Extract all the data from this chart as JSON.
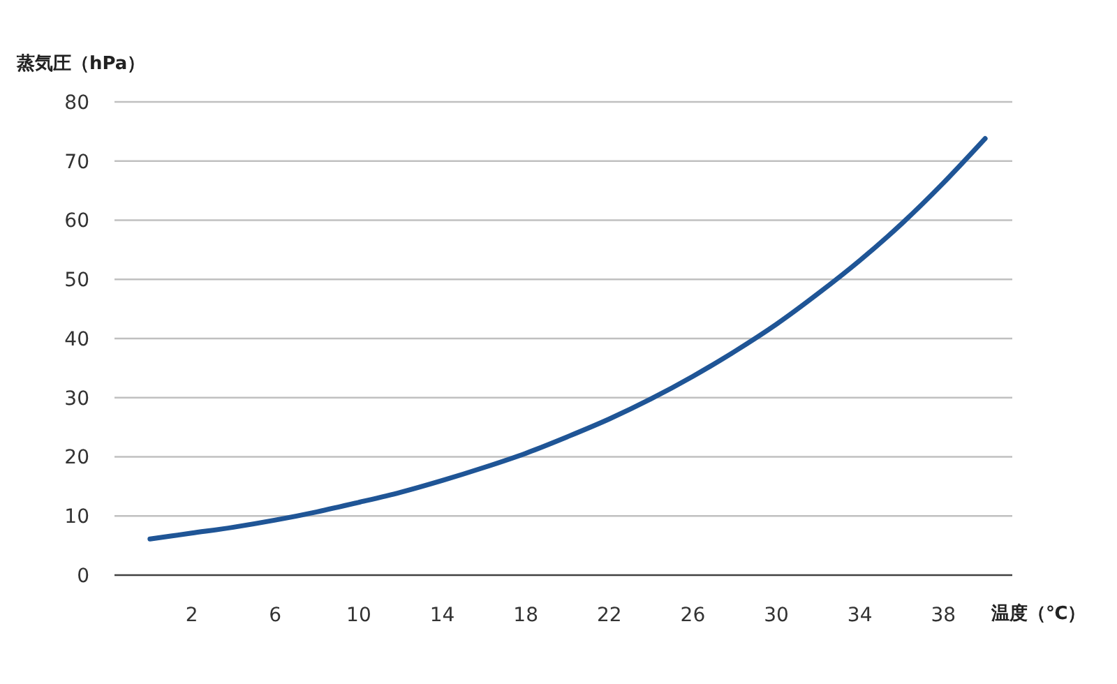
{
  "chart_data": {
    "type": "line",
    "xlabel": "温度（℃）",
    "ylabel": "蒸気圧（hPa）",
    "x": [
      0,
      2,
      4,
      6,
      8,
      10,
      12,
      14,
      16,
      18,
      20,
      22,
      24,
      26,
      28,
      30,
      32,
      34,
      36,
      38,
      40
    ],
    "series": [
      {
        "color": "#1f5596",
        "values": [
          6.1,
          7.1,
          8.1,
          9.3,
          10.7,
          12.3,
          14.0,
          16.0,
          18.2,
          20.6,
          23.4,
          26.4,
          29.8,
          33.6,
          37.8,
          42.4,
          47.6,
          53.2,
          59.4,
          66.3,
          73.8
        ]
      }
    ],
    "xlim": [
      -1.7,
      41.3
    ],
    "xticks": [
      2,
      6,
      10,
      14,
      18,
      22,
      26,
      30,
      34,
      38
    ],
    "ylim": [
      0,
      80
    ],
    "yticks": [
      0,
      10,
      20,
      30,
      40,
      50,
      60,
      70,
      80
    ],
    "grid": "y",
    "line_style": "solid"
  }
}
